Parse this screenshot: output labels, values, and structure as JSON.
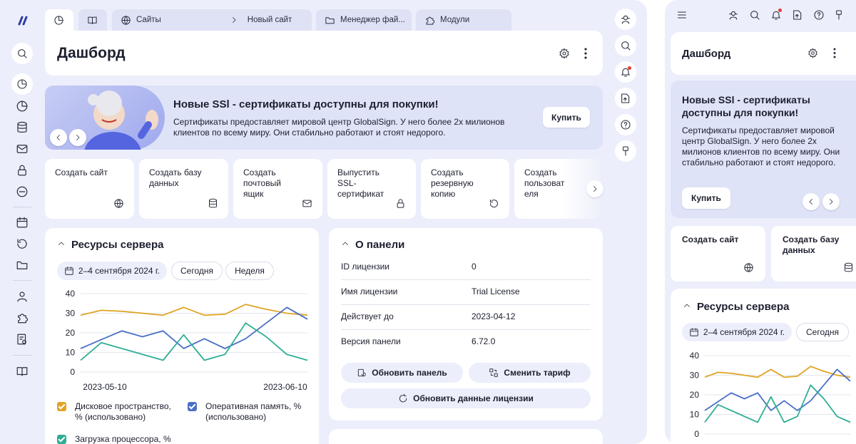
{
  "tabs": [
    {
      "label": ""
    },
    {
      "label": ""
    },
    {
      "label": "Сайты"
    },
    {
      "label": "Новый сайт"
    },
    {
      "label": "Менеджер фай..."
    },
    {
      "label": "Модули"
    }
  ],
  "page_title": "Дашборд",
  "banner": {
    "title": "Новые SSl - сертификаты доступны для покупки!",
    "text": "Сертификаты предоставляет мировой центр GlobalSign. У него более 2х милионов клиентов по всему миру. Они стабильно работают и стоят недорого.",
    "buy_label": "Купить"
  },
  "quick_actions": [
    {
      "label": "Создать сайт",
      "icon": "globe-icon"
    },
    {
      "label": "Создать базу данных",
      "icon": "database-icon"
    },
    {
      "label": "Создать почтовый ящик",
      "icon": "mail-icon"
    },
    {
      "label": "Выпустить SSL-сертификат",
      "icon": "lock-icon"
    },
    {
      "label": "Создать резервную копию",
      "icon": "restore-icon"
    },
    {
      "label": "Создать пользоват еля",
      "icon": "user-icon"
    }
  ],
  "resources": {
    "title": "Ресурсы сервера",
    "date_range": "2–4 сентября 2024 г.",
    "today_label": "Сегодня",
    "week_label": "Неделя",
    "legend": [
      {
        "label": "Дисковое пространство, % (использовано)",
        "color": "#e0a526"
      },
      {
        "label": "Оперативная память, % (использовано)",
        "color": "#4a6fc7"
      },
      {
        "label": "Загрузка процессора, %",
        "color": "#2fae93"
      }
    ]
  },
  "chart_data": {
    "type": "line",
    "x_tick_labels": [
      "2023-05-10",
      "2023-06-10"
    ],
    "y_ticks": [
      0,
      10,
      20,
      30,
      40
    ],
    "ylim": [
      0,
      40
    ],
    "grid": true,
    "series": [
      {
        "name": "Дисковое пространство, % (использовано)",
        "color": "#e0a526",
        "values": [
          29,
          31.5,
          31,
          30,
          29,
          33,
          29,
          29.5,
          34.5,
          32,
          30,
          29
        ]
      },
      {
        "name": "Оперативная память, % (использовано)",
        "color": "#4a6fc7",
        "values": [
          12,
          16.5,
          21,
          18,
          21,
          12,
          17,
          12,
          17,
          25,
          33,
          27
        ]
      },
      {
        "name": "Загрузка процессора, %",
        "color": "#2fae93",
        "values": [
          6,
          15,
          12,
          9,
          6,
          19,
          6,
          9,
          25,
          18,
          9,
          6
        ]
      }
    ]
  },
  "about": {
    "title": "О панели",
    "rows": [
      {
        "key": "ID лицензии",
        "value": "0"
      },
      {
        "key": "Имя лицензии",
        "value": "Trial License"
      },
      {
        "key": "Действует до",
        "value": "2023-04-12"
      },
      {
        "key": "Версия панели",
        "value": "6.72.0"
      }
    ],
    "update_panel_label": "Обновить панель",
    "change_plan_label": "Сменить тариф",
    "update_license_label": "Обновить данные лицензии"
  },
  "mobile": {
    "page_title": "Дашборд",
    "banner_title": "Новые SSl - сертификаты доступны для покупки!",
    "banner_text": "Сертификаты предоставляет мировой центр GlobalSign. У него более 2х милионов клиентов по всему миру. Они стабильно работают и стоят недорого.",
    "buy_label": "Купить",
    "quick_actions": [
      {
        "label": "Создать сайт"
      },
      {
        "label": "Создать базу данных"
      }
    ],
    "resources_title": "Ресурсы сервера",
    "date_range": "2–4 сентября 2024 г.",
    "today_label": "Сегодня"
  },
  "mobile_chart_data": {
    "type": "line",
    "y_ticks": [
      0,
      10,
      20,
      30,
      40
    ],
    "ylim": [
      0,
      40
    ]
  }
}
